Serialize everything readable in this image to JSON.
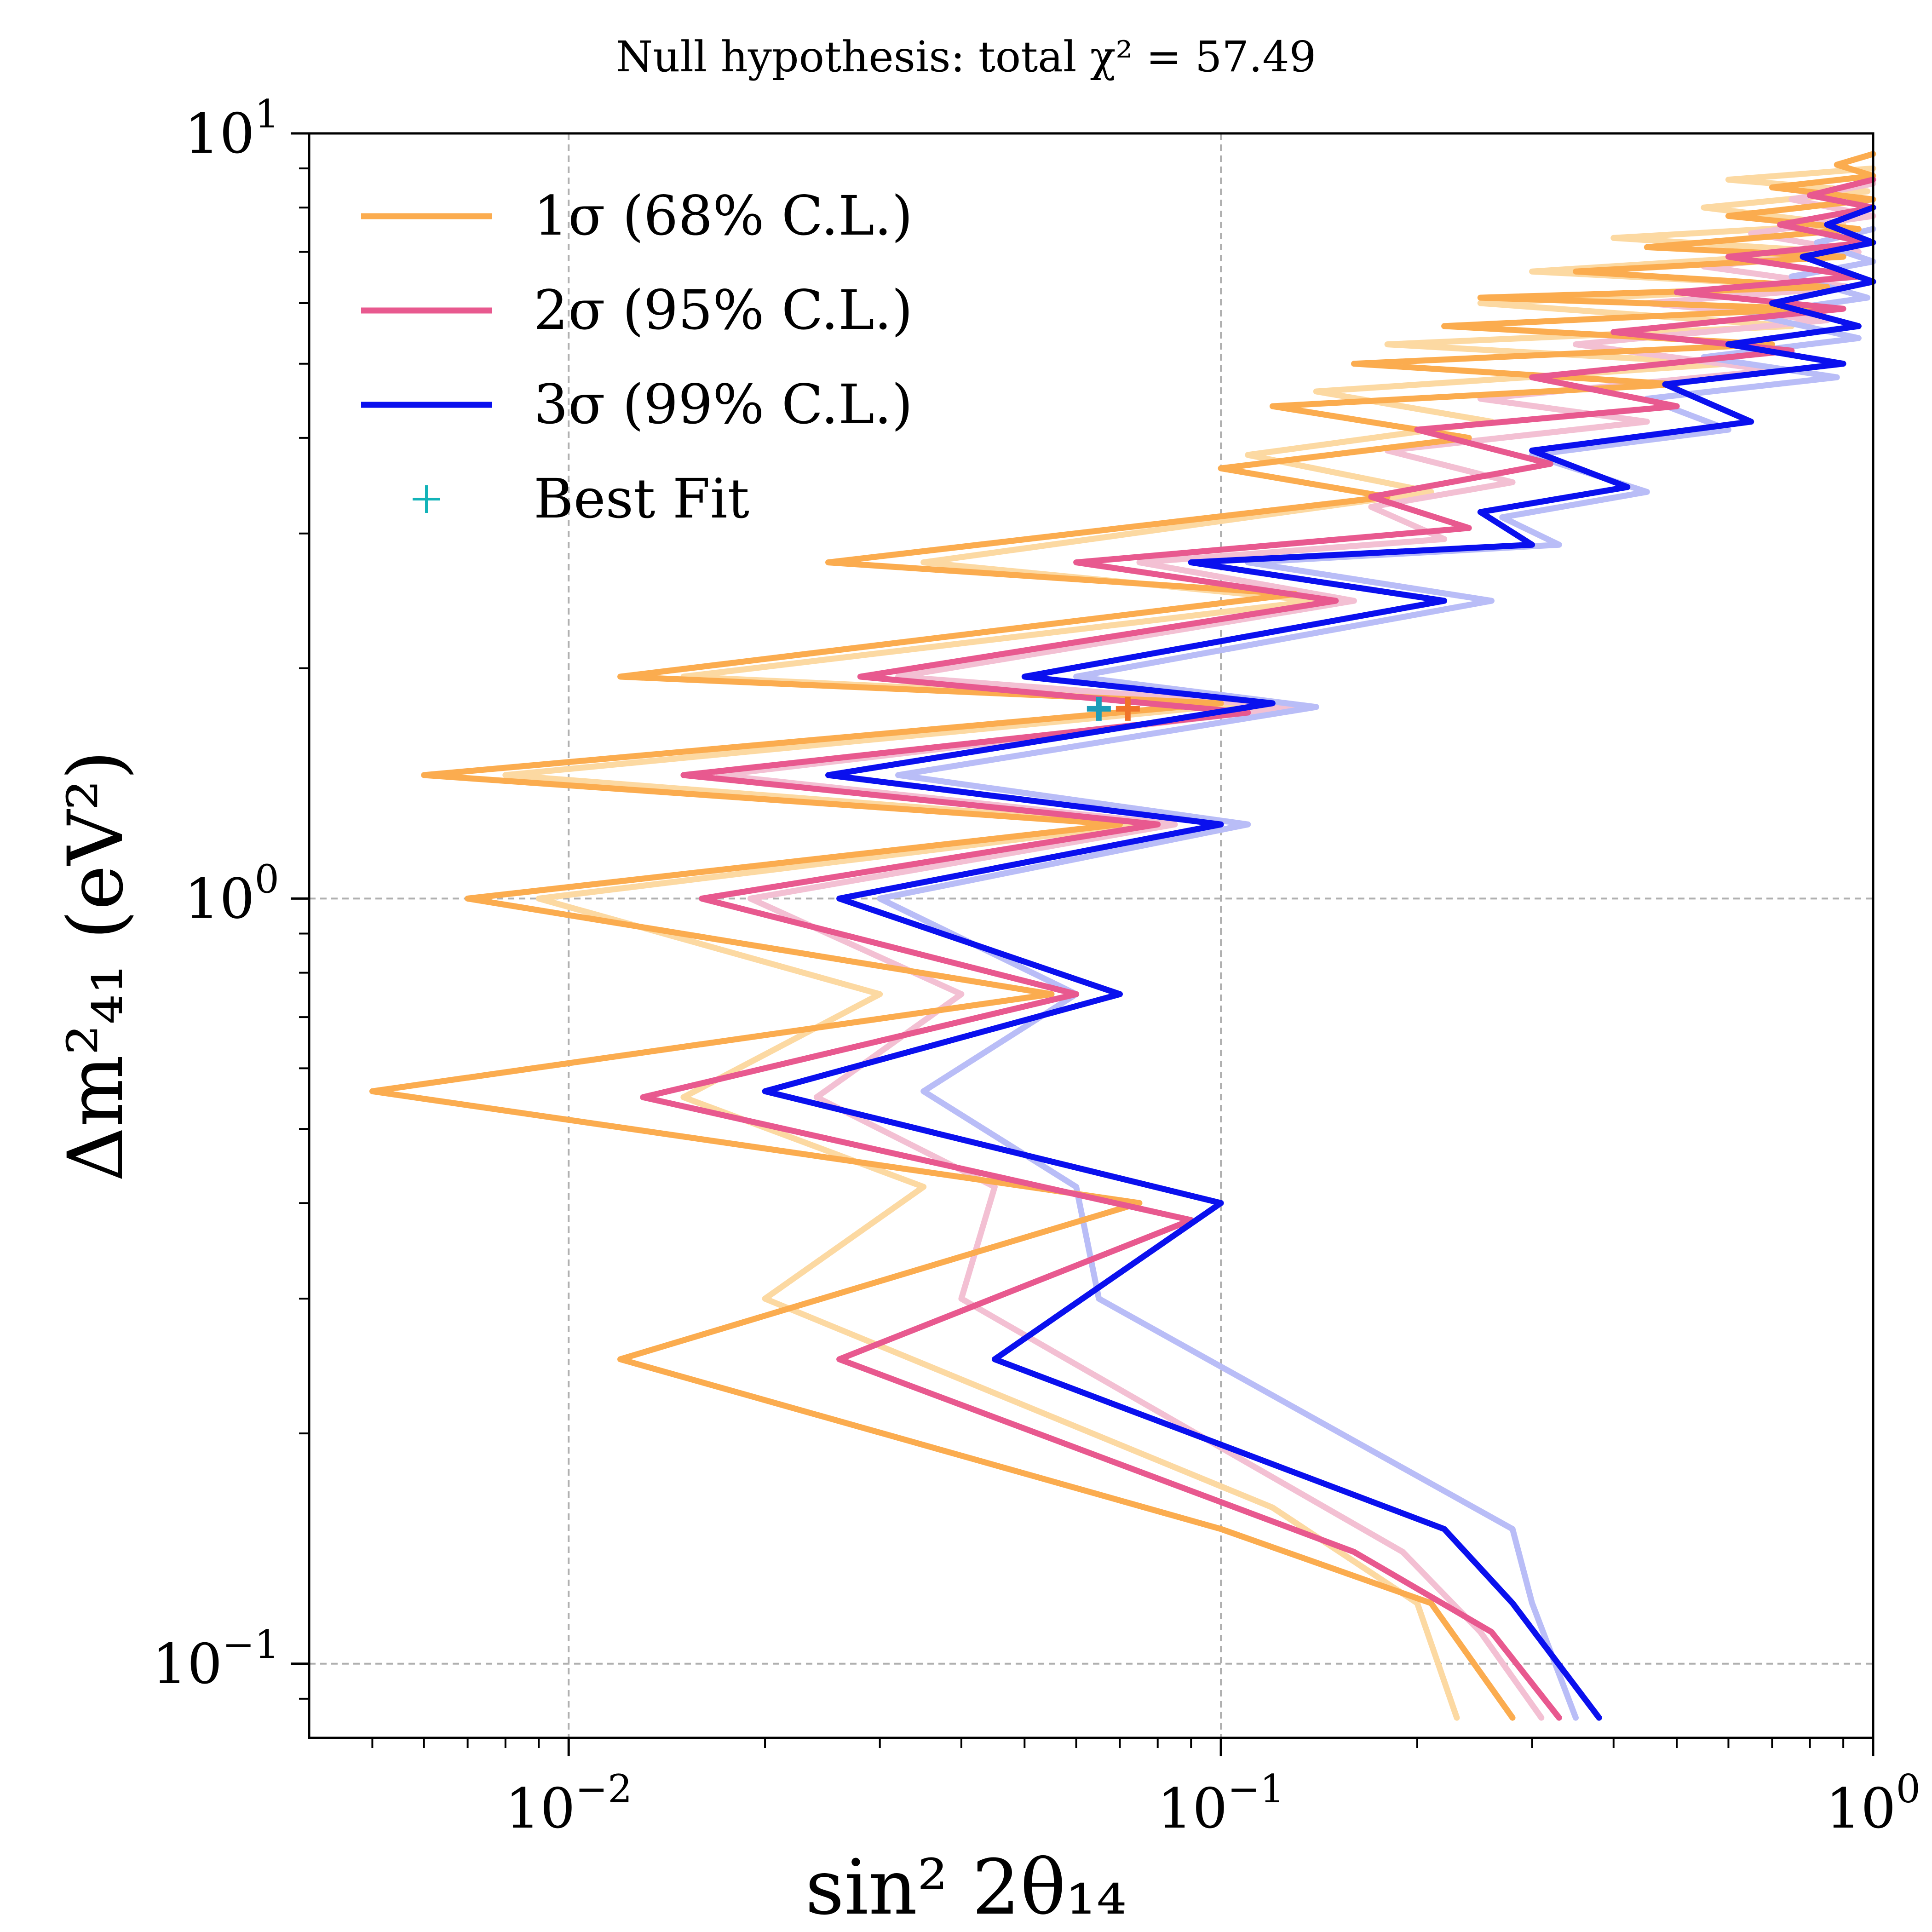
{
  "chart_data": {
    "type": "line",
    "title": "Null hypothesis: total χ² = 57.49",
    "xlabel": "sin² 2θ₁₄",
    "ylabel": "Δm²₄₁ (eV²)",
    "x_scale": "log",
    "y_scale": "log",
    "xlim": [
      0.004,
      1.0
    ],
    "ylim": [
      0.08,
      10.0
    ],
    "x_ticks": [
      {
        "value": 0.01,
        "base": "10",
        "exp": "−2"
      },
      {
        "value": 0.1,
        "base": "10",
        "exp": "−1"
      },
      {
        "value": 1.0,
        "base": "10",
        "exp": "0"
      }
    ],
    "y_ticks": [
      {
        "value": 0.1,
        "base": "10",
        "exp": "−1"
      },
      {
        "value": 1.0,
        "base": "10",
        "exp": "0"
      },
      {
        "value": 10.0,
        "base": "10",
        "exp": "1"
      }
    ],
    "grid": true,
    "legend_position": "top-left",
    "legend": [
      {
        "label": "1σ (68% C.L.)",
        "color": "#fbac4f",
        "kind": "line"
      },
      {
        "label": "2σ (95% C.L.)",
        "color": "#e8598f",
        "kind": "line"
      },
      {
        "label": "3σ (99% C.L.)",
        "color": "#0a10ee",
        "kind": "line"
      },
      {
        "label": "Best Fit",
        "color": "#12b3b8",
        "kind": "marker"
      }
    ],
    "series": [
      {
        "name": "1σ (68% C.L.)",
        "color": "#fbac4f",
        "points": [
          [
            1.0,
            9.4
          ],
          [
            0.88,
            9.1
          ],
          [
            1.0,
            8.8
          ],
          [
            0.7,
            8.5
          ],
          [
            1.0,
            8.2
          ],
          [
            0.6,
            7.8
          ],
          [
            0.95,
            7.5
          ],
          [
            0.45,
            7.1
          ],
          [
            0.9,
            6.9
          ],
          [
            0.35,
            6.6
          ],
          [
            0.85,
            6.3
          ],
          [
            0.25,
            6.1
          ],
          [
            0.8,
            5.9
          ],
          [
            0.22,
            5.6
          ],
          [
            0.7,
            5.3
          ],
          [
            0.16,
            5.0
          ],
          [
            0.5,
            4.7
          ],
          [
            0.12,
            4.4
          ],
          [
            0.24,
            4.0
          ],
          [
            0.1,
            3.65
          ],
          [
            0.18,
            3.35
          ],
          [
            0.025,
            2.75
          ],
          [
            0.13,
            2.5
          ],
          [
            0.012,
            1.95
          ],
          [
            0.1,
            1.8
          ],
          [
            0.006,
            1.45
          ],
          [
            0.07,
            1.25
          ],
          [
            0.007,
            1.0
          ],
          [
            0.055,
            0.75
          ],
          [
            0.005,
            0.56
          ],
          [
            0.075,
            0.4
          ],
          [
            0.012,
            0.25
          ],
          [
            0.1,
            0.15
          ],
          [
            0.21,
            0.12
          ],
          [
            0.28,
            0.085
          ]
        ]
      },
      {
        "name": "2σ (95% C.L.)",
        "color": "#e8598f",
        "points": [
          [
            1.0,
            8.7
          ],
          [
            0.8,
            8.3
          ],
          [
            1.0,
            8.0
          ],
          [
            0.72,
            7.6
          ],
          [
            0.98,
            7.2
          ],
          [
            0.6,
            6.9
          ],
          [
            0.95,
            6.5
          ],
          [
            0.5,
            6.2
          ],
          [
            0.9,
            5.9
          ],
          [
            0.4,
            5.5
          ],
          [
            0.75,
            5.2
          ],
          [
            0.3,
            4.8
          ],
          [
            0.5,
            4.4
          ],
          [
            0.2,
            4.1
          ],
          [
            0.32,
            3.7
          ],
          [
            0.17,
            3.35
          ],
          [
            0.24,
            3.05
          ],
          [
            0.06,
            2.75
          ],
          [
            0.15,
            2.45
          ],
          [
            0.028,
            1.95
          ],
          [
            0.11,
            1.75
          ],
          [
            0.015,
            1.45
          ],
          [
            0.08,
            1.25
          ],
          [
            0.016,
            1.0
          ],
          [
            0.06,
            0.75
          ],
          [
            0.013,
            0.55
          ],
          [
            0.09,
            0.38
          ],
          [
            0.026,
            0.25
          ],
          [
            0.16,
            0.14
          ],
          [
            0.26,
            0.11
          ],
          [
            0.33,
            0.085
          ]
        ]
      },
      {
        "name": "3σ (99% C.L.)",
        "color": "#0a10ee",
        "points": [
          [
            1.0,
            8.0
          ],
          [
            0.85,
            7.6
          ],
          [
            1.0,
            7.2
          ],
          [
            0.78,
            6.9
          ],
          [
            1.0,
            6.4
          ],
          [
            0.7,
            6.0
          ],
          [
            0.95,
            5.6
          ],
          [
            0.6,
            5.3
          ],
          [
            0.9,
            5.0
          ],
          [
            0.48,
            4.7
          ],
          [
            0.65,
            4.2
          ],
          [
            0.3,
            3.85
          ],
          [
            0.42,
            3.45
          ],
          [
            0.25,
            3.2
          ],
          [
            0.3,
            2.9
          ],
          [
            0.09,
            2.75
          ],
          [
            0.22,
            2.45
          ],
          [
            0.05,
            1.95
          ],
          [
            0.12,
            1.8
          ],
          [
            0.025,
            1.45
          ],
          [
            0.1,
            1.25
          ],
          [
            0.026,
            1.0
          ],
          [
            0.07,
            0.75
          ],
          [
            0.02,
            0.56
          ],
          [
            0.1,
            0.4
          ],
          [
            0.045,
            0.25
          ],
          [
            0.22,
            0.15
          ],
          [
            0.28,
            0.12
          ],
          [
            0.38,
            0.085
          ]
        ]
      },
      {
        "name": "1σ (light)",
        "color": "#fcd9a2",
        "points": [
          [
            1.0,
            9.0
          ],
          [
            0.6,
            8.7
          ],
          [
            0.98,
            8.4
          ],
          [
            0.55,
            8.0
          ],
          [
            0.9,
            7.6
          ],
          [
            0.4,
            7.3
          ],
          [
            0.88,
            7.0
          ],
          [
            0.3,
            6.6
          ],
          [
            0.85,
            6.3
          ],
          [
            0.25,
            6.0
          ],
          [
            0.75,
            5.6
          ],
          [
            0.18,
            5.3
          ],
          [
            0.6,
            5.0
          ],
          [
            0.14,
            4.6
          ],
          [
            0.26,
            4.2
          ],
          [
            0.11,
            3.8
          ],
          [
            0.21,
            3.4
          ],
          [
            0.035,
            2.75
          ],
          [
            0.14,
            2.45
          ],
          [
            0.015,
            1.95
          ],
          [
            0.11,
            1.8
          ],
          [
            0.008,
            1.45
          ],
          [
            0.075,
            1.25
          ],
          [
            0.009,
            1.0
          ],
          [
            0.03,
            0.75
          ],
          [
            0.015,
            0.55
          ],
          [
            0.035,
            0.42
          ],
          [
            0.02,
            0.3
          ],
          [
            0.12,
            0.16
          ],
          [
            0.2,
            0.12
          ],
          [
            0.23,
            0.085
          ]
        ]
      },
      {
        "name": "2σ (light)",
        "color": "#f3c0d3",
        "points": [
          [
            1.0,
            8.6
          ],
          [
            0.75,
            8.2
          ],
          [
            1.0,
            7.8
          ],
          [
            0.65,
            7.4
          ],
          [
            0.95,
            7.0
          ],
          [
            0.55,
            6.7
          ],
          [
            0.92,
            6.3
          ],
          [
            0.45,
            6.0
          ],
          [
            0.85,
            5.7
          ],
          [
            0.35,
            5.3
          ],
          [
            0.7,
            4.9
          ],
          [
            0.25,
            4.5
          ],
          [
            0.45,
            4.2
          ],
          [
            0.18,
            3.85
          ],
          [
            0.28,
            3.5
          ],
          [
            0.17,
            3.25
          ],
          [
            0.22,
            2.95
          ],
          [
            0.075,
            2.75
          ],
          [
            0.16,
            2.45
          ],
          [
            0.032,
            1.95
          ],
          [
            0.13,
            1.78
          ],
          [
            0.017,
            1.45
          ],
          [
            0.085,
            1.25
          ],
          [
            0.019,
            1.0
          ],
          [
            0.04,
            0.75
          ],
          [
            0.024,
            0.55
          ],
          [
            0.045,
            0.42
          ],
          [
            0.04,
            0.3
          ],
          [
            0.19,
            0.14
          ],
          [
            0.25,
            0.11
          ],
          [
            0.31,
            0.085
          ]
        ]
      },
      {
        "name": "3σ (light)",
        "color": "#b9bdf7",
        "points": [
          [
            1.0,
            7.5
          ],
          [
            0.82,
            7.2
          ],
          [
            1.0,
            6.8
          ],
          [
            0.75,
            6.5
          ],
          [
            0.98,
            6.1
          ],
          [
            0.65,
            5.8
          ],
          [
            0.95,
            5.4
          ],
          [
            0.55,
            5.1
          ],
          [
            0.88,
            4.8
          ],
          [
            0.45,
            4.5
          ],
          [
            0.6,
            4.1
          ],
          [
            0.3,
            3.8
          ],
          [
            0.45,
            3.4
          ],
          [
            0.27,
            3.15
          ],
          [
            0.33,
            2.9
          ],
          [
            0.11,
            2.75
          ],
          [
            0.26,
            2.45
          ],
          [
            0.06,
            1.95
          ],
          [
            0.14,
            1.78
          ],
          [
            0.032,
            1.45
          ],
          [
            0.11,
            1.25
          ],
          [
            0.03,
            1.0
          ],
          [
            0.06,
            0.75
          ],
          [
            0.035,
            0.56
          ],
          [
            0.06,
            0.42
          ],
          [
            0.065,
            0.3
          ],
          [
            0.28,
            0.15
          ],
          [
            0.3,
            0.12
          ],
          [
            0.35,
            0.085
          ]
        ]
      }
    ],
    "best_fit": [
      {
        "x": 0.065,
        "y": 1.77,
        "color": "#1d9cb8"
      },
      {
        "x": 0.072,
        "y": 1.77,
        "color": "#f0742a"
      }
    ]
  }
}
